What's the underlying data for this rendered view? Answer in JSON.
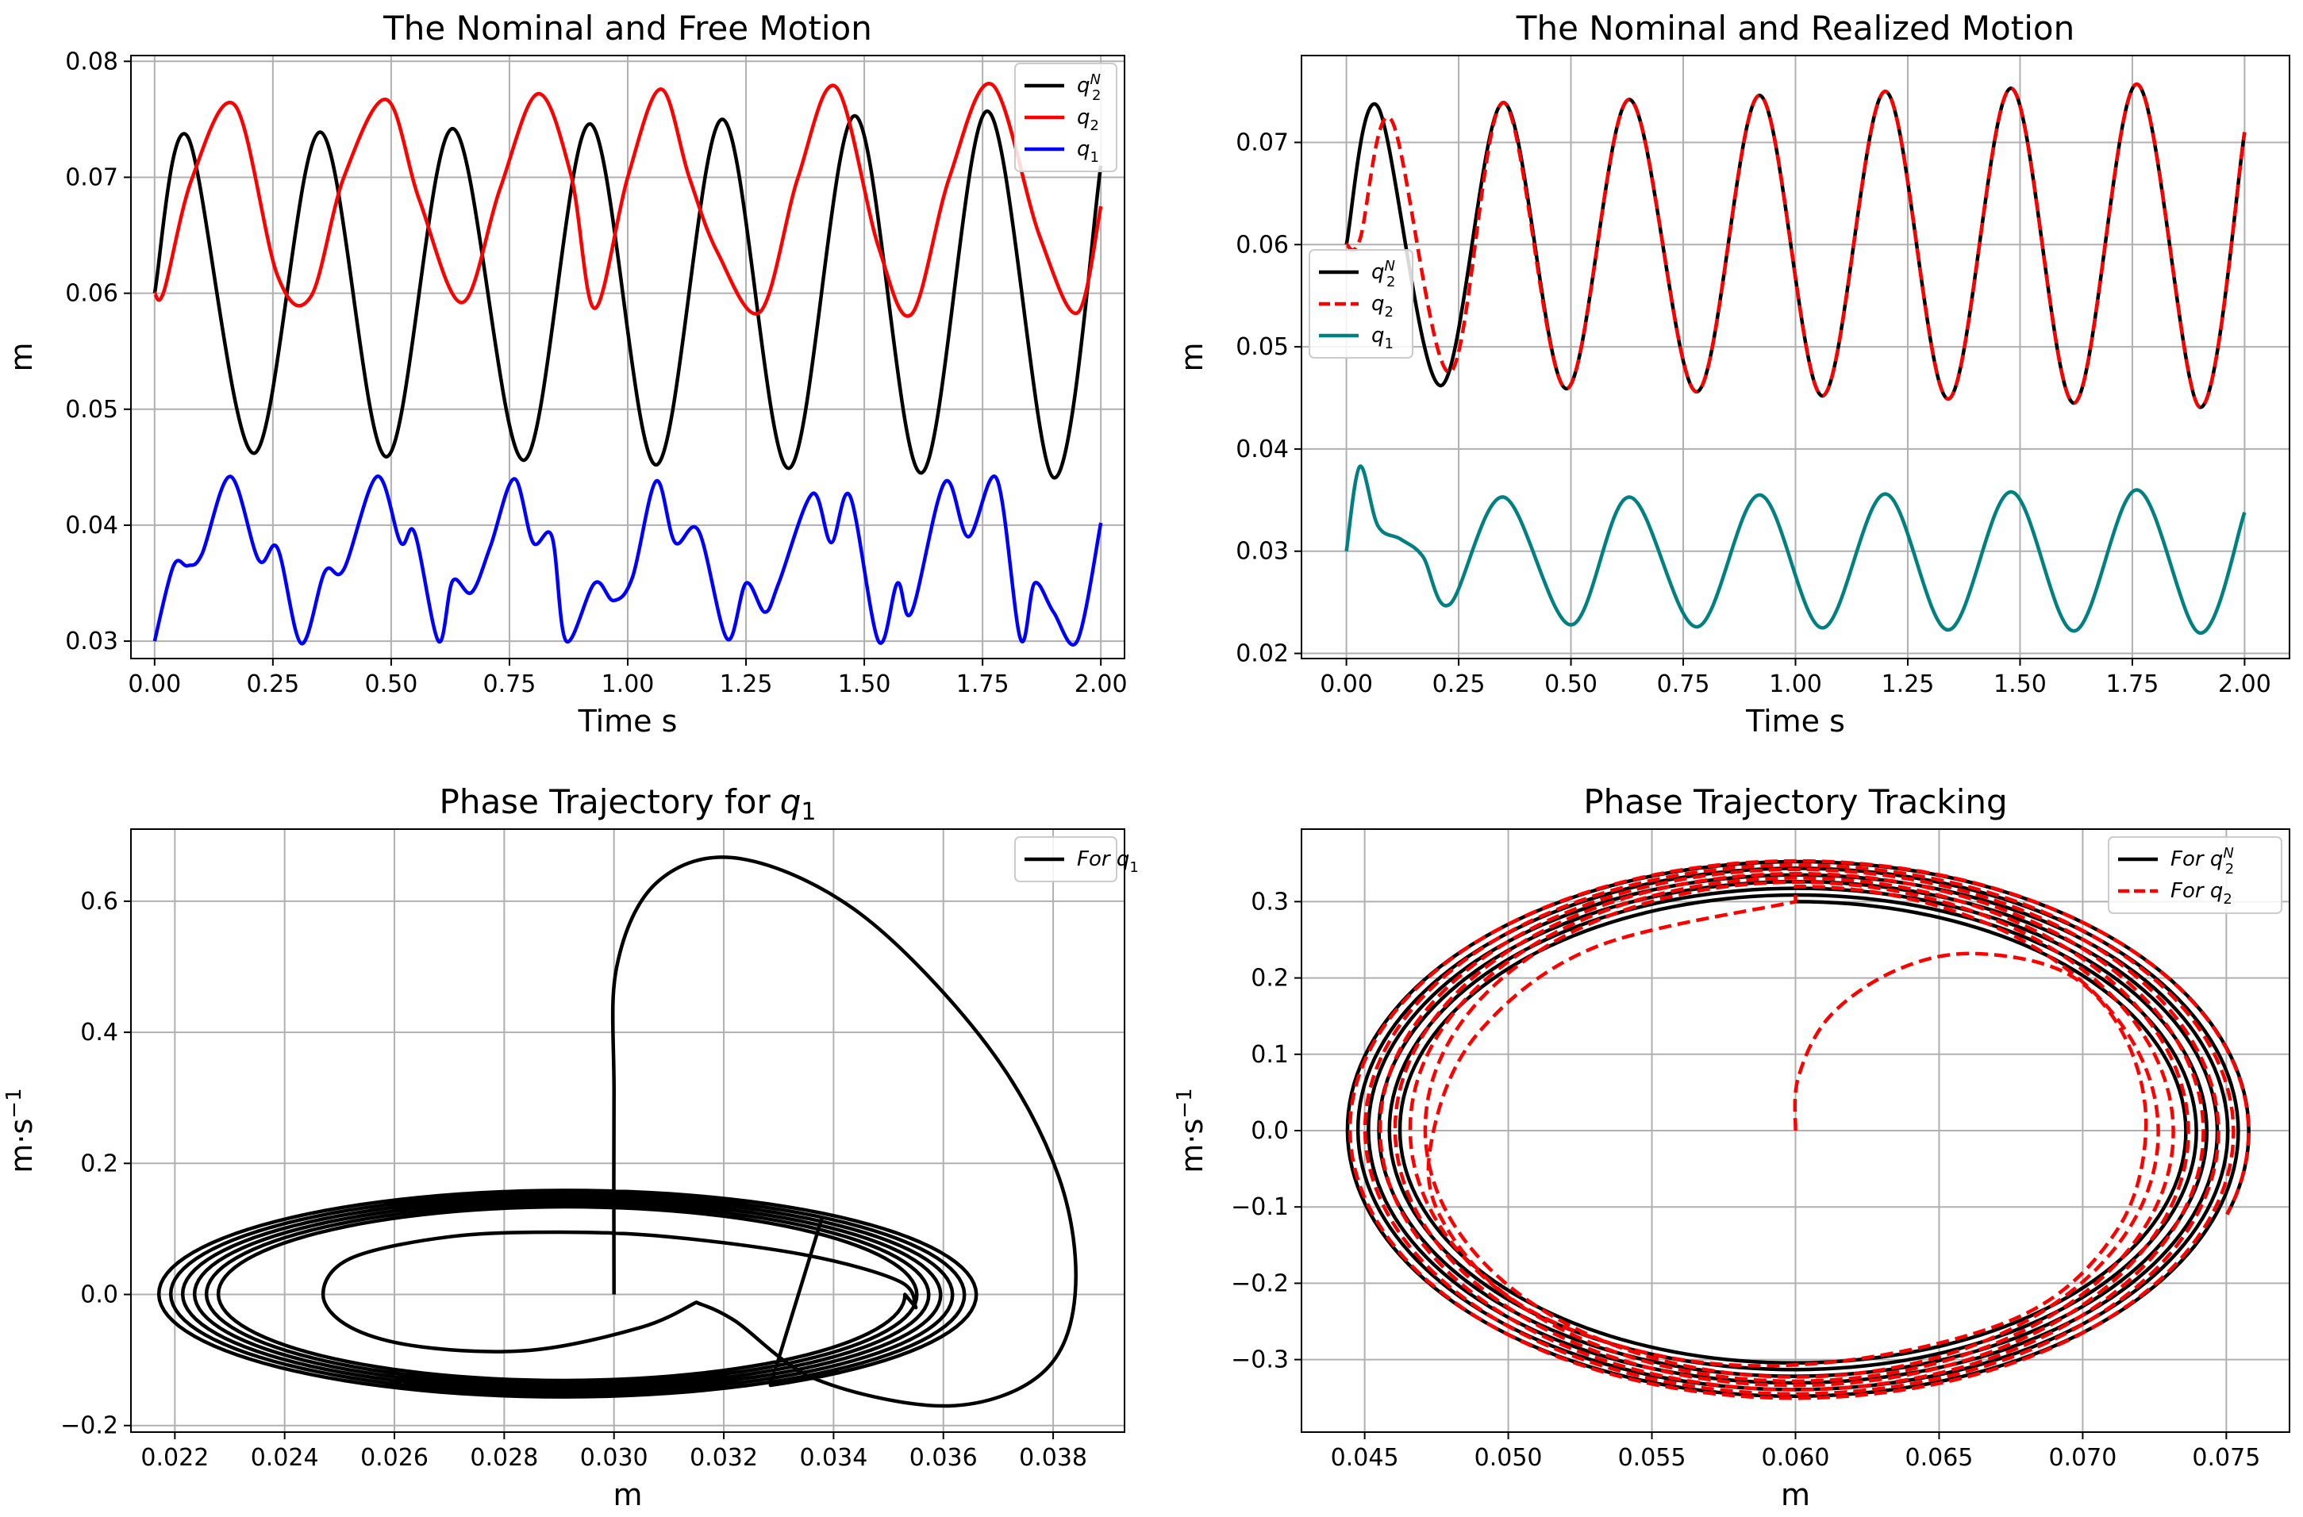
{
  "chart_data": [
    {
      "type": "line",
      "title": "The Nominal and Free Motion",
      "xlabel": "Time s",
      "ylabel": "m",
      "xlim": [
        -0.05,
        2.05
      ],
      "ylim": [
        0.0285,
        0.0805
      ],
      "xticks": [
        0.0,
        0.25,
        0.5,
        0.75,
        1.0,
        1.25,
        1.5,
        1.75,
        2.0
      ],
      "xtick_labels": [
        "0.00",
        "0.25",
        "0.50",
        "0.75",
        "1.00",
        "1.25",
        "1.50",
        "1.75",
        "2.00"
      ],
      "yticks": [
        0.03,
        0.04,
        0.05,
        0.06,
        0.07,
        0.08
      ],
      "ytick_labels": [
        "0.03",
        "0.04",
        "0.05",
        "0.06",
        "0.07",
        "0.08"
      ],
      "grid": true,
      "legend_position": "top-right",
      "series": [
        {
          "name": "q2N",
          "label": "q",
          "sub": "2",
          "sup": "N",
          "color": "#000000",
          "dash": "solid",
          "x": [
            0.0,
            0.07,
            0.21,
            0.35,
            0.49,
            0.63,
            0.78,
            0.92,
            1.06,
            1.2,
            1.34,
            1.48,
            1.62,
            1.76,
            1.9,
            2.0
          ],
          "y": [
            0.06,
            0.0735,
            0.0462,
            0.0739,
            0.0459,
            0.0742,
            0.0456,
            0.0746,
            0.0452,
            0.075,
            0.0449,
            0.0753,
            0.0445,
            0.0757,
            0.0441,
            0.071
          ]
        },
        {
          "name": "q2",
          "label": "q",
          "sub": "2",
          "color": "#ff0000",
          "dash": "solid",
          "x": [
            0.0,
            0.02,
            0.08,
            0.17,
            0.26,
            0.33,
            0.4,
            0.49,
            0.56,
            0.65,
            0.73,
            0.81,
            0.88,
            0.93,
            1.0,
            1.07,
            1.13,
            1.19,
            1.28,
            1.36,
            1.44,
            1.53,
            1.6,
            1.68,
            1.77,
            1.87,
            1.95,
            2.0
          ],
          "y": [
            0.06,
            0.0602,
            0.07,
            0.0762,
            0.0615,
            0.0597,
            0.07,
            0.0767,
            0.068,
            0.0592,
            0.069,
            0.0772,
            0.0702,
            0.0587,
            0.07,
            0.0776,
            0.07,
            0.0635,
            0.0584,
            0.07,
            0.0778,
            0.064,
            0.0582,
            0.07,
            0.078,
            0.065,
            0.0583,
            0.0675
          ]
        },
        {
          "name": "q1",
          "label": "q",
          "sub": "1",
          "color": "#0000ff",
          "dash": "solid",
          "x": [
            0.0,
            0.04,
            0.07,
            0.1,
            0.16,
            0.22,
            0.26,
            0.31,
            0.36,
            0.4,
            0.47,
            0.52,
            0.55,
            0.6,
            0.63,
            0.67,
            0.71,
            0.76,
            0.8,
            0.84,
            0.87,
            0.93,
            0.97,
            1.01,
            1.06,
            1.1,
            1.15,
            1.21,
            1.25,
            1.29,
            1.32,
            1.39,
            1.43,
            1.47,
            1.53,
            1.57,
            1.6,
            1.67,
            1.72,
            1.78,
            1.83,
            1.86,
            1.9,
            1.95,
            2.0
          ],
          "y": [
            0.03,
            0.0365,
            0.0365,
            0.0375,
            0.0442,
            0.037,
            0.038,
            0.0298,
            0.036,
            0.0362,
            0.0442,
            0.0385,
            0.0393,
            0.03,
            0.0352,
            0.0342,
            0.0382,
            0.044,
            0.0385,
            0.039,
            0.03,
            0.035,
            0.0335,
            0.0355,
            0.0438,
            0.0385,
            0.0395,
            0.0302,
            0.035,
            0.0325,
            0.0351,
            0.0427,
            0.0385,
            0.0425,
            0.03,
            0.035,
            0.0325,
            0.0437,
            0.039,
            0.044,
            0.0302,
            0.035,
            0.0325,
            0.03,
            0.0402
          ]
        }
      ]
    },
    {
      "type": "line",
      "title": "The Nominal and Realized Motion",
      "xlabel": "Time s",
      "ylabel": "m",
      "xlim": [
        -0.1,
        2.1
      ],
      "ylim": [
        0.0195,
        0.0785
      ],
      "xticks": [
        0.0,
        0.25,
        0.5,
        0.75,
        1.0,
        1.25,
        1.5,
        1.75,
        2.0
      ],
      "xtick_labels": [
        "0.00",
        "0.25",
        "0.50",
        "0.75",
        "1.00",
        "1.25",
        "1.50",
        "1.75",
        "2.00"
      ],
      "yticks": [
        0.02,
        0.03,
        0.04,
        0.05,
        0.06,
        0.07
      ],
      "ytick_labels": [
        "0.02",
        "0.03",
        "0.04",
        "0.05",
        "0.06",
        "0.07"
      ],
      "grid": true,
      "legend_position": "center-left",
      "series": [
        {
          "name": "q2N",
          "label": "q",
          "sub": "2",
          "sup": "N",
          "color": "#000000",
          "dash": "solid",
          "x": [
            0.0,
            0.07,
            0.21,
            0.35,
            0.49,
            0.63,
            0.78,
            0.92,
            1.06,
            1.2,
            1.34,
            1.48,
            1.62,
            1.76,
            1.9,
            2.0
          ],
          "y": [
            0.06,
            0.0735,
            0.0462,
            0.0739,
            0.0459,
            0.0742,
            0.0456,
            0.0746,
            0.0452,
            0.075,
            0.0449,
            0.0753,
            0.0445,
            0.0757,
            0.0441,
            0.071
          ]
        },
        {
          "name": "q2",
          "label": "q",
          "sub": "2",
          "color": "#ff0000",
          "dash": "dashed",
          "x": [
            0.0,
            0.03,
            0.1,
            0.23,
            0.35,
            0.49,
            0.63,
            0.78,
            0.92,
            1.06,
            1.2,
            1.34,
            1.48,
            1.62,
            1.76,
            1.9,
            2.0
          ],
          "y": [
            0.06,
            0.0605,
            0.0722,
            0.0475,
            0.0739,
            0.0459,
            0.0742,
            0.0456,
            0.0746,
            0.0452,
            0.075,
            0.0449,
            0.0753,
            0.0445,
            0.0757,
            0.0441,
            0.071
          ]
        },
        {
          "name": "q1",
          "label": "q",
          "sub": "1",
          "color": "#008080",
          "dash": "solid",
          "x": [
            0.0,
            0.03,
            0.07,
            0.12,
            0.17,
            0.23,
            0.35,
            0.5,
            0.63,
            0.78,
            0.92,
            1.06,
            1.2,
            1.34,
            1.48,
            1.62,
            1.76,
            1.9,
            2.0
          ],
          "y": [
            0.03,
            0.0383,
            0.0325,
            0.0312,
            0.0295,
            0.0248,
            0.0353,
            0.0228,
            0.0353,
            0.0226,
            0.0355,
            0.0225,
            0.0356,
            0.0223,
            0.0358,
            0.0222,
            0.036,
            0.022,
            0.0338
          ]
        }
      ]
    },
    {
      "type": "line",
      "title": "Phase Trajectory for q1",
      "title_plain": "Phase Trajectory for",
      "title_math": "q",
      "title_sub": "1",
      "xlabel": "m",
      "ylabel": "m·s",
      "ylabel_sup": "−1",
      "xlim": [
        0.0212,
        0.0393
      ],
      "ylim": [
        -0.21,
        0.71
      ],
      "xticks": [
        0.022,
        0.024,
        0.026,
        0.028,
        0.03,
        0.032,
        0.034,
        0.036,
        0.038
      ],
      "xtick_labels": [
        "0.022",
        "0.024",
        "0.026",
        "0.028",
        "0.030",
        "0.032",
        "0.034",
        "0.036",
        "0.038"
      ],
      "yticks": [
        -0.2,
        0.0,
        0.2,
        0.4,
        0.6
      ],
      "ytick_labels": [
        "−0.2",
        "0.0",
        "0.2",
        "0.4",
        "0.6"
      ],
      "grid": true,
      "legend_position": "top-right",
      "series": [
        {
          "name": "For q1",
          "label": "For q",
          "sub": "1",
          "color": "#000000",
          "dash": "solid",
          "kind": "phase1",
          "start": [
            0.03,
            0.0
          ],
          "spike_peak": [
            0.0323,
            0.665
          ],
          "spike_right": [
            0.0384,
            0.0
          ],
          "spike_bottom": [
            0.0361,
            -0.17
          ],
          "cusp": [
            0.0315,
            -0.012
          ],
          "inner_loop_left": [
            0.0247,
            0.0
          ],
          "center": [
            0.0291,
            0.0
          ],
          "ellipses_x_range": [
            0.0221,
            0.036
          ],
          "ellipses_y_amp": 0.16,
          "end": [
            0.0338,
            0.12
          ]
        }
      ]
    },
    {
      "type": "line",
      "title": "Phase Trajectory Tracking",
      "xlabel": "m",
      "ylabel": "m·s",
      "ylabel_sup": "−1",
      "xlim": [
        0.0428,
        0.0772
      ],
      "ylim": [
        -0.395,
        0.395
      ],
      "xticks": [
        0.045,
        0.05,
        0.055,
        0.06,
        0.065,
        0.07,
        0.075
      ],
      "xtick_labels": [
        "0.045",
        "0.050",
        "0.055",
        "0.060",
        "0.065",
        "0.070",
        "0.075"
      ],
      "yticks": [
        -0.3,
        -0.2,
        -0.1,
        0.0,
        0.1,
        0.2,
        0.3
      ],
      "ytick_labels": [
        "−0.3",
        "−0.2",
        "−0.1",
        "0.0",
        "0.1",
        "0.2",
        "0.3"
      ],
      "grid": true,
      "legend_position": "top-right",
      "series": [
        {
          "name": "For q2N",
          "label": "For q",
          "sub": "2",
          "sup": "N",
          "color": "#000000",
          "dash": "solid",
          "kind": "phase2",
          "center": [
            0.06,
            0.0
          ],
          "start_amp": [
            0.0135,
            0.3
          ],
          "end_amp": [
            0.0158,
            0.355
          ],
          "end": [
            0.0708,
            0.27
          ]
        },
        {
          "name": "For q2",
          "label": "For q",
          "sub": "2",
          "color": "#ff0000",
          "dash": "dashed",
          "kind": "phase2",
          "center": [
            0.06,
            0.0
          ],
          "origin": [
            0.06,
            0.0
          ],
          "first_peak": [
            0.0662,
            0.232
          ],
          "start_amp": [
            0.0125,
            0.32
          ],
          "end_amp": [
            0.0158,
            0.355
          ],
          "end": [
            0.0708,
            0.27
          ]
        }
      ]
    }
  ]
}
